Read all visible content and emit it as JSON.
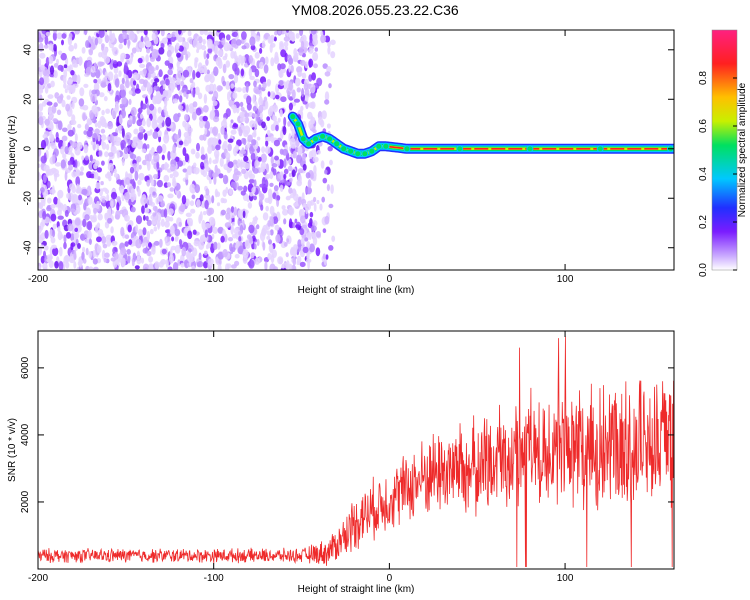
{
  "title": "YM08.2026.055.23.22.C36",
  "chart_data": [
    {
      "type": "heatmap",
      "xlabel": "Height of straight line (km)",
      "ylabel": "Frequency (Hz)",
      "xlim": [
        -200,
        162
      ],
      "ylim": [
        -49,
        48
      ],
      "xticks": [
        -200,
        -100,
        0,
        100
      ],
      "yticks": [
        -40,
        -20,
        0,
        20,
        40
      ],
      "colorbar": {
        "label": "Normalized spectral amplitude",
        "range": [
          0,
          1
        ],
        "ticks": [
          "0.0",
          "0.2",
          "0.4",
          "0.6",
          "0.8"
        ],
        "colors": [
          "#ffffff",
          "#c9a8ff",
          "#7a1cff",
          "#2030ff",
          "#00c8ff",
          "#00e060",
          "#c8f000",
          "#ffc000",
          "#ff2020",
          "#ff2080"
        ]
      },
      "noise_region": {
        "x_range": [
          -200,
          -42
        ],
        "level": "low (0.0–0.2)"
      },
      "ridge": {
        "x": [
          -55,
          -52,
          -49,
          -46,
          -42,
          -38,
          -34,
          -30,
          -26,
          -22,
          -18,
          -14,
          -10,
          -6,
          -2,
          10,
          40,
          80,
          120,
          160
        ],
        "y": [
          13,
          10,
          4,
          2,
          4,
          5,
          4,
          2,
          0,
          -1,
          -2,
          -2,
          -1,
          1,
          1,
          0,
          0,
          0,
          0,
          0
        ]
      }
    },
    {
      "type": "line",
      "xlabel": "Height of straight line (km)",
      "ylabel": "SNR (10 * v/v)",
      "xlim": [
        -200,
        162
      ],
      "ylim": [
        0,
        7100
      ],
      "xticks": [
        -200,
        -100,
        0,
        100
      ],
      "yticks": [
        2000,
        4000,
        6000
      ],
      "series": [
        {
          "color": "#ee2a2a",
          "envelope": {
            "x": [
              -200,
              -50,
              -35,
              -25,
              -20,
              0,
              25,
              50,
              75,
              100,
              125,
              145,
              162
            ],
            "mean": [
              400,
              400,
              500,
              1000,
              1400,
              2100,
              2900,
              3000,
              3600,
              3700,
              3700,
              3900,
              3900
            ],
            "spread": [
              200,
              200,
              400,
              600,
              800,
              900,
              1200,
              1400,
              1600,
              1700,
              1800,
              1900,
              1900
            ]
          }
        }
      ]
    }
  ]
}
